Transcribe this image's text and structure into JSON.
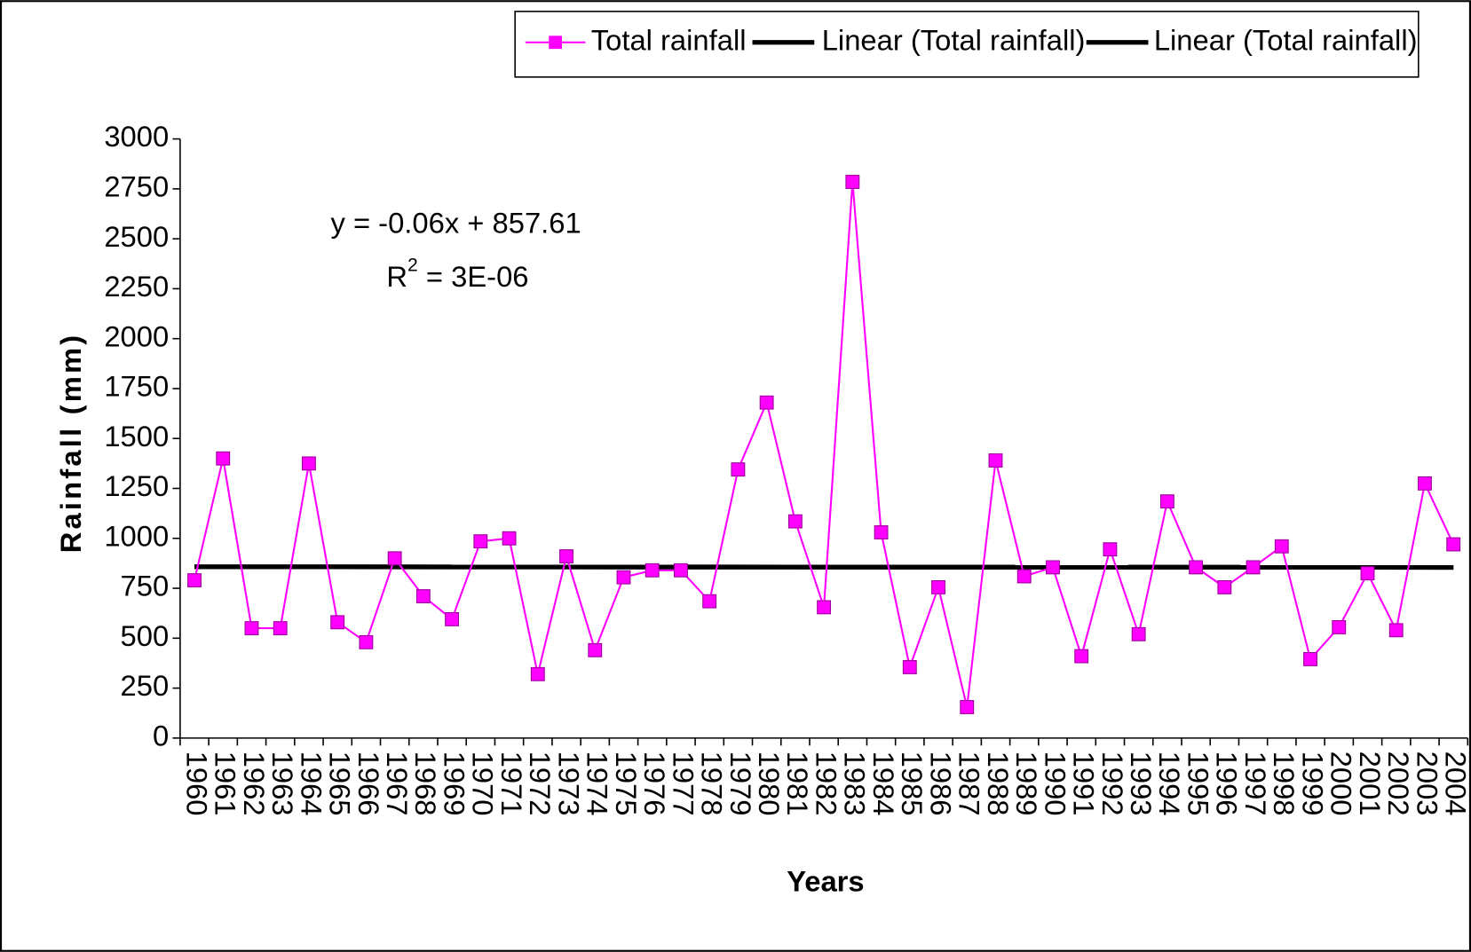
{
  "chart_data": {
    "type": "line",
    "x_label": "Years",
    "y_label": "Rainfall (mm)",
    "annotation": {
      "equation": "y = -0.06x + 857.61",
      "r_base": "R",
      "r_sup": "2",
      "r_rest": " = 3E-06"
    },
    "categories": [
      "1960",
      "1961",
      "1962",
      "1963",
      "1964",
      "1965",
      "1966",
      "1967",
      "1968",
      "1969",
      "1970",
      "1971",
      "1972",
      "1973",
      "1974",
      "1975",
      "1976",
      "1977",
      "1978",
      "1979",
      "1980",
      "1981",
      "1982",
      "1983",
      "1984",
      "1985",
      "1986",
      "1987",
      "1988",
      "1989",
      "1990",
      "1991",
      "1992",
      "1993",
      "1994",
      "1995",
      "1996",
      "1997",
      "1998",
      "1999",
      "2000",
      "2001",
      "2002",
      "2003",
      "2004"
    ],
    "series": [
      {
        "name": "Total rainfall",
        "color": "#ff00ff",
        "values": [
          790,
          1400,
          550,
          550,
          1375,
          580,
          480,
          900,
          710,
          595,
          985,
          1000,
          320,
          910,
          440,
          805,
          840,
          840,
          685,
          1345,
          1680,
          1085,
          655,
          2785,
          1030,
          355,
          755,
          155,
          1390,
          810,
          855,
          410,
          945,
          520,
          1185,
          855,
          755,
          855,
          960,
          395,
          555,
          825,
          540,
          1275,
          970
        ]
      }
    ],
    "trendlines": [
      {
        "name": "Linear (Total rainfall)",
        "color": "#000000",
        "values": [
          857.5,
          854.9
        ]
      },
      {
        "name": "Linear (Total rainfall)",
        "color": "#000000",
        "values": [
          857.5,
          854.9
        ]
      }
    ],
    "ylim": [
      0,
      3000
    ],
    "yticks": [
      0,
      250,
      500,
      750,
      1000,
      1250,
      1500,
      1750,
      2000,
      2250,
      2500,
      2750,
      3000
    ],
    "legend": "top-right"
  }
}
